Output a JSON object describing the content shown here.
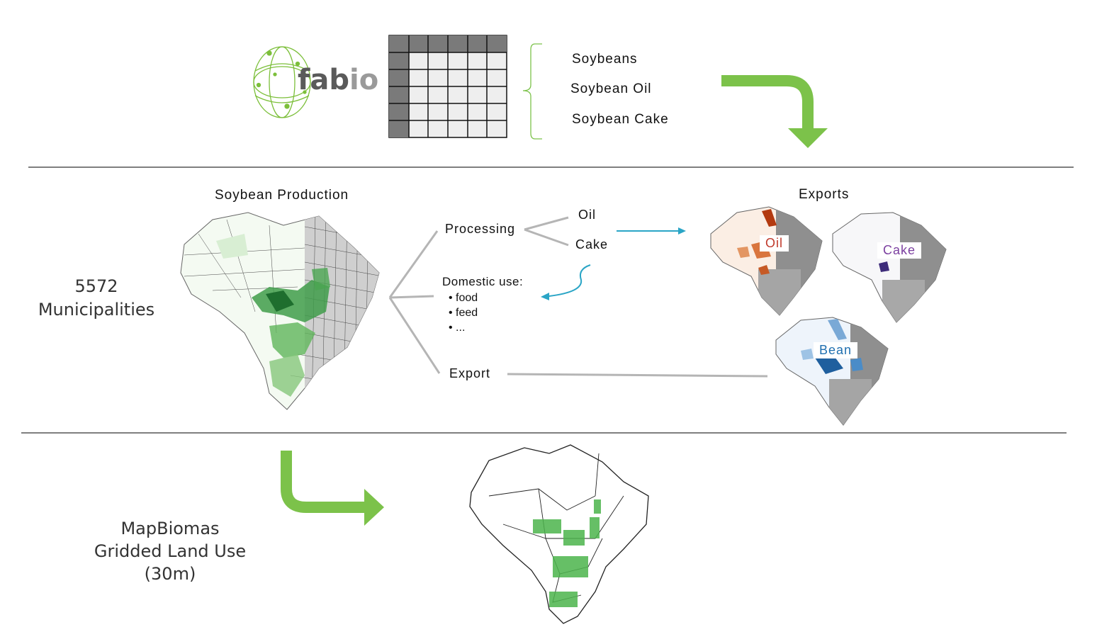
{
  "logo": {
    "text_fab": "fab",
    "text_io": "io",
    "icon": "globe-network-icon"
  },
  "products": [
    "Soybeans",
    "Soybean Oil",
    "Soybean Cake"
  ],
  "left_label": {
    "line1": "5572",
    "line2": "Municipalities"
  },
  "bottom_label": {
    "line1": "MapBiomas",
    "line2": "Gridded Land Use",
    "line3": "(30m)"
  },
  "section_titles": {
    "production": "Soybean Production",
    "exports": "Exports"
  },
  "flow": {
    "processing": "Processing",
    "oil": "Oil",
    "cake": "Cake",
    "domestic": "Domestic use:",
    "domestic_items": [
      "food",
      "feed",
      "..."
    ],
    "export": "Export"
  },
  "export_maps": {
    "oil": "Oil",
    "cake": "Cake",
    "bean": "Bean"
  },
  "colors": {
    "arrow_green": "#7cc24a",
    "teal_arrow": "#2aa5c6",
    "oil": "#c0392b",
    "cake": "#7b3fa0",
    "bean": "#1f6fb0",
    "map_green": "#2e9a3a"
  }
}
